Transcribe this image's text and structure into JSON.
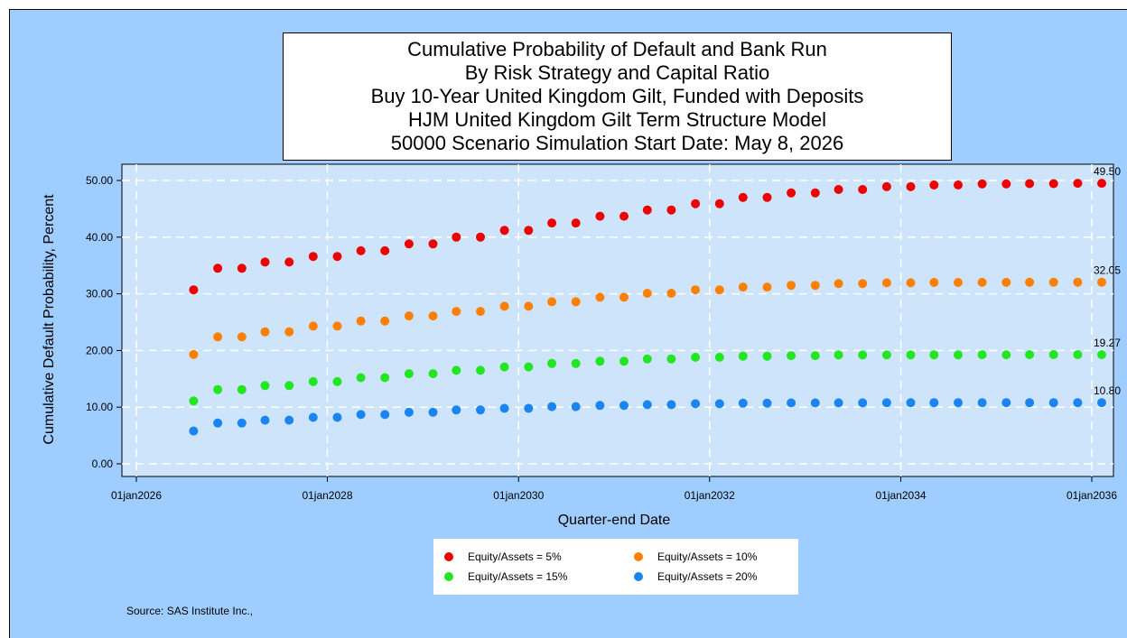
{
  "title_lines": [
    "Cumulative Probability of Default and Bank Run",
    "By Risk Strategy and Capital Ratio",
    "Buy 10-Year United Kingdom Gilt, Funded with Deposits",
    "HJM United Kingdom Gilt Term Structure Model",
    "50000 Scenario Simulation Start Date: May 8, 2026"
  ],
  "source": "Source: SAS Institute Inc.,",
  "colors": {
    "background": "#9fcdff",
    "plot_area": "#cde4fb",
    "grid": "#ffffff"
  },
  "chart_data": {
    "type": "scatter",
    "xlabel": "Quarter-end Date",
    "ylabel": "Cumulative Default Probability, Percent",
    "xticks": [
      "01jan2026",
      "01jan2028",
      "01jan2030",
      "01jan2032",
      "01jan2034",
      "01jan2036"
    ],
    "yticks": [
      "0.00",
      "10.00",
      "20.00",
      "30.00",
      "40.00",
      "50.00"
    ],
    "ylim": [
      0,
      52
    ],
    "xlim": [
      "2026-01-01",
      "2036-01-01"
    ],
    "grid": true,
    "legend_position": "bottom",
    "x": [
      "2026-08-08",
      "2026-11-08",
      "2027-02-08",
      "2027-05-08",
      "2027-08-08",
      "2027-11-08",
      "2028-02-08",
      "2028-05-08",
      "2028-08-08",
      "2028-11-08",
      "2029-02-08",
      "2029-05-08",
      "2029-08-08",
      "2029-11-08",
      "2030-02-08",
      "2030-05-08",
      "2030-08-08",
      "2030-11-08",
      "2031-02-08",
      "2031-05-08",
      "2031-08-08",
      "2031-11-08",
      "2032-02-08",
      "2032-05-08",
      "2032-08-08",
      "2032-11-08",
      "2033-02-08",
      "2033-05-08",
      "2033-08-08",
      "2033-11-08",
      "2034-02-08",
      "2034-05-08",
      "2034-08-08",
      "2034-11-08",
      "2035-02-08",
      "2035-05-08",
      "2035-08-08",
      "2035-11-08",
      "2036-02-08"
    ],
    "series": [
      {
        "name": "Equity/Assets = 5%",
        "color": "#ee0000",
        "end_label": "49.50",
        "values": [
          30.7,
          34.5,
          34.5,
          35.6,
          35.6,
          36.6,
          36.6,
          37.6,
          37.6,
          38.8,
          38.8,
          40.0,
          40.0,
          41.2,
          41.2,
          42.5,
          42.5,
          43.7,
          43.7,
          44.8,
          44.8,
          45.9,
          45.9,
          47.0,
          47.0,
          47.8,
          47.8,
          48.4,
          48.4,
          48.9,
          48.9,
          49.2,
          49.2,
          49.4,
          49.4,
          49.45,
          49.45,
          49.5,
          49.5
        ]
      },
      {
        "name": "Equity/Assets = 10%",
        "color": "#ff8000",
        "end_label": "32.05",
        "values": [
          19.3,
          22.4,
          22.4,
          23.3,
          23.3,
          24.3,
          24.3,
          25.2,
          25.2,
          26.1,
          26.1,
          26.9,
          26.9,
          27.8,
          27.8,
          28.6,
          28.6,
          29.4,
          29.4,
          30.1,
          30.1,
          30.7,
          30.7,
          31.2,
          31.2,
          31.5,
          31.5,
          31.8,
          31.8,
          31.95,
          31.95,
          32.0,
          32.0,
          32.02,
          32.02,
          32.04,
          32.04,
          32.05,
          32.05
        ]
      },
      {
        "name": "Equity/Assets = 15%",
        "color": "#22e622",
        "end_label": "19.27",
        "values": [
          11.1,
          13.1,
          13.1,
          13.8,
          13.8,
          14.5,
          14.5,
          15.2,
          15.2,
          15.9,
          15.9,
          16.5,
          16.5,
          17.1,
          17.1,
          17.7,
          17.7,
          18.1,
          18.1,
          18.5,
          18.5,
          18.8,
          18.8,
          19.0,
          19.0,
          19.1,
          19.1,
          19.2,
          19.2,
          19.22,
          19.22,
          19.24,
          19.24,
          19.25,
          19.25,
          19.26,
          19.26,
          19.27,
          19.27
        ]
      },
      {
        "name": "Equity/Assets = 20%",
        "color": "#1a85f0",
        "end_label": "10.80",
        "values": [
          5.8,
          7.2,
          7.2,
          7.7,
          7.7,
          8.2,
          8.2,
          8.7,
          8.7,
          9.1,
          9.1,
          9.5,
          9.5,
          9.8,
          9.8,
          10.1,
          10.1,
          10.3,
          10.3,
          10.45,
          10.45,
          10.6,
          10.6,
          10.7,
          10.7,
          10.75,
          10.75,
          10.77,
          10.77,
          10.78,
          10.78,
          10.79,
          10.79,
          10.79,
          10.79,
          10.8,
          10.8,
          10.8,
          10.8
        ]
      }
    ]
  }
}
